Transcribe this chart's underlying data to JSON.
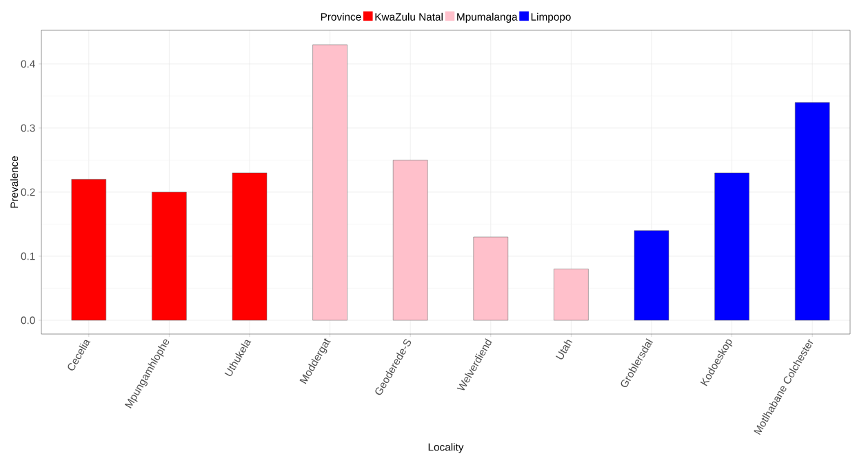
{
  "chart_data": {
    "type": "bar",
    "xlabel": "Locality",
    "ylabel": "Prevalence",
    "legend_title": "Province",
    "categories": [
      "Cecelia",
      "Mpungamhlophe",
      "Uthukela",
      "Moddergat",
      "Geoderede-S",
      "Welverdiend",
      "Utah",
      "Groblersdal",
      "Kodoeskop",
      "Motlhabane Colchester"
    ],
    "series": [
      {
        "name": "KwaZulu Natal",
        "color": "#ff0000",
        "values": [
          0.22,
          0.2,
          0.23,
          null,
          null,
          null,
          null,
          null,
          null,
          null
        ]
      },
      {
        "name": "Mpumalanga",
        "color": "#ffc0cb",
        "values": [
          null,
          null,
          null,
          0.43,
          0.25,
          0.13,
          0.08,
          null,
          null,
          null
        ]
      },
      {
        "name": "Limpopo",
        "color": "#0000ff",
        "values": [
          null,
          null,
          null,
          null,
          null,
          null,
          null,
          0.14,
          0.23,
          0.34
        ]
      }
    ],
    "ylim": [
      -0.0215,
      0.4525
    ],
    "yticks": [
      {
        "value": 0,
        "label": "0.0"
      },
      0.1,
      0.2,
      0.3,
      0.4
    ],
    "grid": true,
    "legend": "top"
  }
}
